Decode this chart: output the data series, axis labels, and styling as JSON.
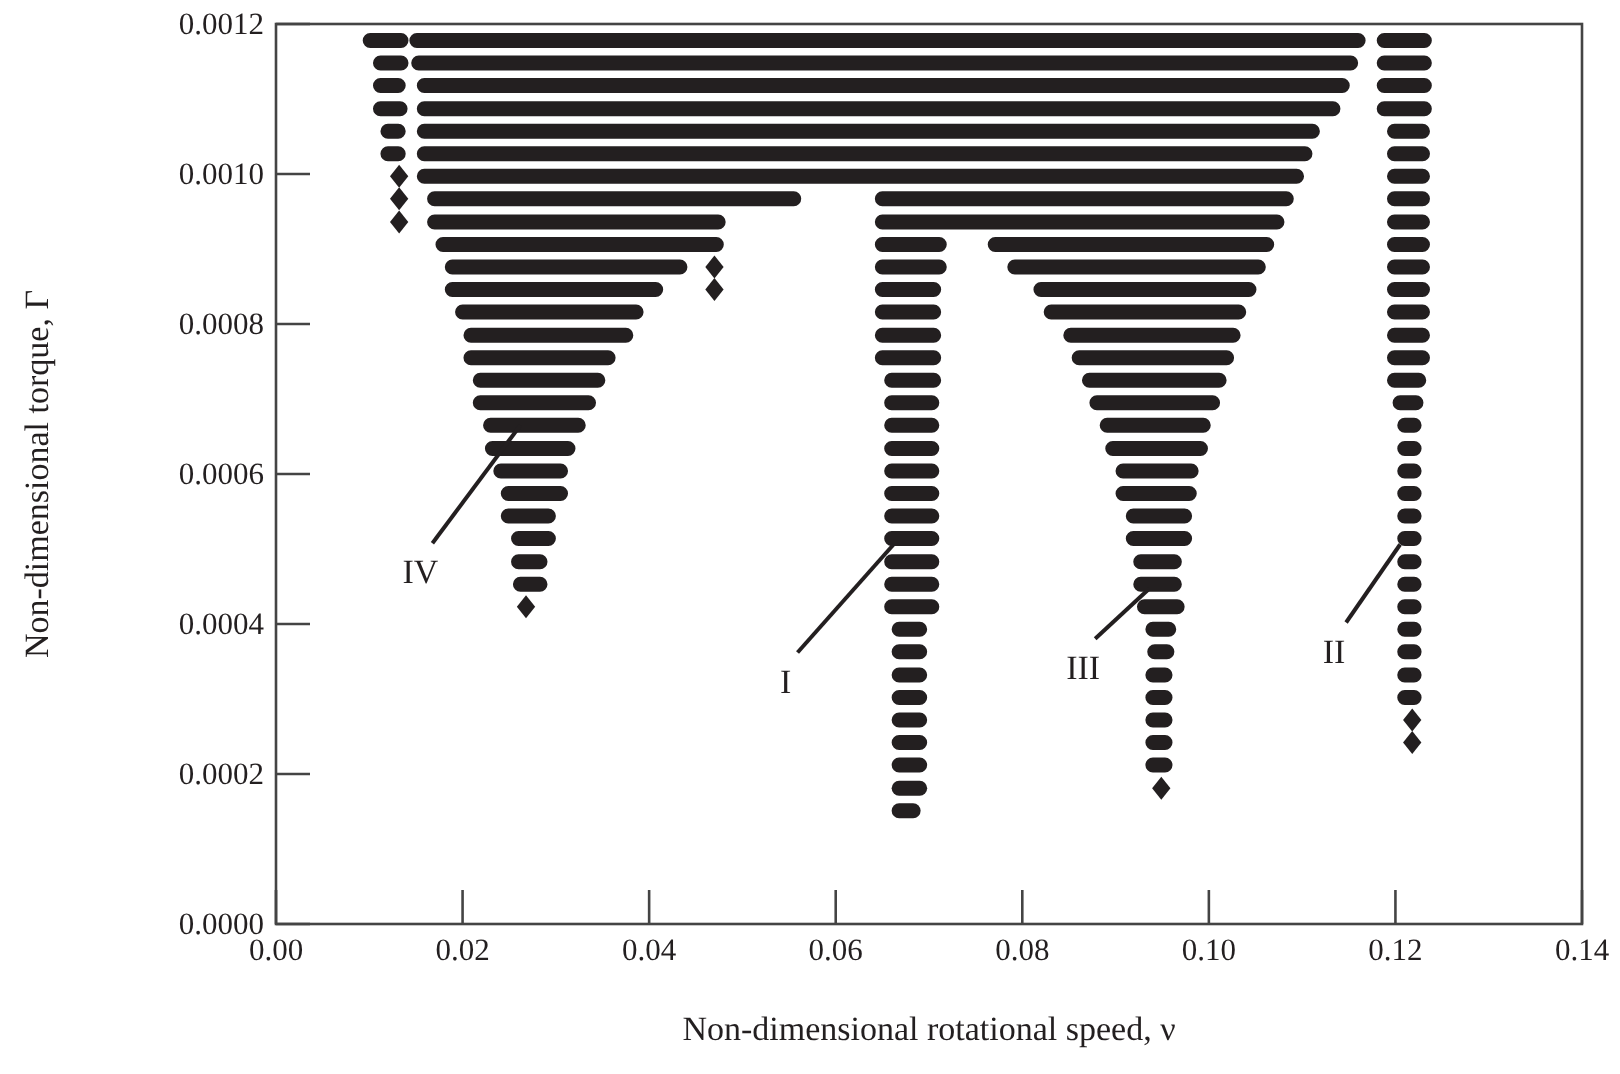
{
  "chart_data": {
    "type": "line",
    "xlabel": "Non-dimensional rotational speed, ν",
    "ylabel": "Non-dimensional torque, Γ",
    "xlim": [
      0,
      0.14
    ],
    "ylim": [
      0,
      0.0012
    ],
    "xticks": [
      {
        "value": 0,
        "label": "0.00"
      },
      {
        "value": 0.02,
        "label": "0.02"
      },
      {
        "value": 0.04,
        "label": "0.04"
      },
      {
        "value": 0.06,
        "label": "0.06"
      },
      {
        "value": 0.08,
        "label": "0.08"
      },
      {
        "value": 0.1,
        "label": "0.10"
      },
      {
        "value": 0.12,
        "label": "0.12"
      },
      {
        "value": 0.14,
        "label": "0.14"
      }
    ],
    "yticks": [
      {
        "value": 0,
        "label": "0.0000"
      },
      {
        "value": 0.0002,
        "label": "0.0002"
      },
      {
        "value": 0.0004,
        "label": "0.0004"
      },
      {
        "value": 0.0006,
        "label": "0.0006"
      },
      {
        "value": 0.0008,
        "label": "0.0008"
      },
      {
        "value": 0.001,
        "label": "0.0010"
      },
      {
        "value": 0.0012,
        "label": "0.0012"
      }
    ],
    "line_style": "solid",
    "annotations": [
      {
        "text": "IV",
        "x": 0.0262,
        "y": 0.000665
      },
      {
        "text": "I",
        "x": 0.0662,
        "y": 0.000506
      },
      {
        "text": "III",
        "x": 0.0936,
        "y": 0.000447
      },
      {
        "text": "II",
        "x": 0.1205,
        "y": 0.000506
      }
    ],
    "series": [
      {
        "color": "#231f20",
        "x": [
          0.0101,
          0.0134,
          null,
          0.0151,
          0.116,
          null,
          0.1188,
          0.1231
        ],
        "values": [
          0.001178,
          0.001178,
          null,
          0.001178,
          0.001178,
          null,
          0.001178,
          0.001178
        ]
      },
      {
        "color": "#231f20",
        "x": [
          0.0112,
          0.0134,
          null,
          0.0153,
          0.1152,
          null,
          0.1188,
          0.1231
        ],
        "values": [
          0.001148,
          0.001148,
          null,
          0.001148,
          0.001148,
          null,
          0.001148,
          0.001148
        ]
      },
      {
        "color": "#231f20",
        "x": [
          0.0112,
          0.0131,
          null,
          0.0159,
          0.1143,
          null,
          0.1188,
          0.1231
        ],
        "values": [
          0.001118,
          0.001118,
          null,
          0.001118,
          0.001118,
          null,
          0.001118,
          0.001118
        ]
      },
      {
        "color": "#231f20",
        "x": [
          0.0112,
          0.0133,
          null,
          0.0159,
          0.1133,
          null,
          0.1188,
          0.1231
        ],
        "values": [
          0.001087,
          0.001087,
          null,
          0.001087,
          0.001087,
          null,
          0.001087,
          0.001087
        ]
      },
      {
        "color": "#231f20",
        "x": [
          0.012,
          0.0131,
          null,
          0.0159,
          0.1111,
          null,
          0.1199,
          0.1229
        ],
        "values": [
          0.001057,
          0.001057,
          null,
          0.001057,
          0.001057,
          null,
          0.001057,
          0.001057
        ]
      },
      {
        "color": "#231f20",
        "x": [
          0.012,
          0.0131,
          null,
          0.0159,
          0.1103,
          null,
          0.1199,
          0.1229
        ],
        "values": [
          0.001027,
          0.001027,
          null,
          0.001027,
          0.001027,
          null,
          0.001027,
          0.001027
        ]
      },
      {
        "color": "#231f20",
        "x": [
          0.0159,
          0.1094,
          null,
          0.1199,
          0.1229
        ],
        "values": [
          0.000997,
          0.000997,
          null,
          0.000997,
          0.000997
        ]
      },
      {
        "color": "#231f20",
        "x": [
          0.017,
          0.0555,
          null,
          0.065,
          0.1083,
          null,
          0.1199,
          0.1229
        ],
        "values": [
          0.000967,
          0.000967,
          null,
          0.000967,
          0.000967,
          null,
          0.000967,
          0.000967
        ]
      },
      {
        "color": "#231f20",
        "x": [
          0.017,
          0.0474,
          null,
          0.065,
          0.1073,
          null,
          0.1199,
          0.1229
        ],
        "values": [
          0.000936,
          0.000936,
          null,
          0.000936,
          0.000936,
          null,
          0.000936,
          0.000936
        ]
      },
      {
        "color": "#231f20",
        "x": [
          0.0179,
          0.0472,
          null,
          0.065,
          0.0711,
          null,
          0.0771,
          0.1062,
          null,
          0.1199,
          0.1229
        ],
        "values": [
          0.000906,
          0.000906,
          null,
          0.000906,
          0.000906,
          null,
          0.000906,
          0.000906,
          null,
          0.000906,
          0.000906
        ]
      },
      {
        "color": "#231f20",
        "x": [
          0.0189,
          0.0433,
          null,
          0.065,
          0.0711,
          null,
          0.0792,
          0.1053,
          null,
          0.1199,
          0.1229
        ],
        "values": [
          0.000876,
          0.000876,
          null,
          0.000876,
          0.000876,
          null,
          0.000876,
          0.000876,
          null,
          0.000876,
          0.000876
        ]
      },
      {
        "color": "#231f20",
        "x": [
          0.0189,
          0.0407,
          null,
          0.065,
          0.0705,
          null,
          0.082,
          0.1043,
          null,
          0.1199,
          0.1229
        ],
        "values": [
          0.000846,
          0.000846,
          null,
          0.000846,
          0.000846,
          null,
          0.000846,
          0.000846,
          null,
          0.000846,
          0.000846
        ]
      },
      {
        "color": "#231f20",
        "x": [
          0.02,
          0.0386,
          null,
          0.065,
          0.0705,
          null,
          0.0831,
          0.1032,
          null,
          0.1199,
          0.1229
        ],
        "values": [
          0.000816,
          0.000816,
          null,
          0.000816,
          0.000816,
          null,
          0.000816,
          0.000816,
          null,
          0.000816,
          0.000816
        ]
      },
      {
        "color": "#231f20",
        "x": [
          0.0209,
          0.0375,
          null,
          0.065,
          0.0705,
          null,
          0.0852,
          0.1026,
          null,
          0.1199,
          0.1229
        ],
        "values": [
          0.000785,
          0.000785,
          null,
          0.000785,
          0.000785,
          null,
          0.000785,
          0.000785,
          null,
          0.000785,
          0.000785
        ]
      },
      {
        "color": "#231f20",
        "x": [
          0.0209,
          0.0356,
          null,
          0.065,
          0.0705,
          null,
          0.0861,
          0.1019,
          null,
          0.1199,
          0.1229
        ],
        "values": [
          0.000755,
          0.000755,
          null,
          0.000755,
          0.000755,
          null,
          0.000755,
          0.000755,
          null,
          0.000755,
          0.000755
        ]
      },
      {
        "color": "#231f20",
        "x": [
          0.0219,
          0.0345,
          null,
          0.066,
          0.0705,
          null,
          0.0872,
          0.1011,
          null,
          0.1199,
          0.1225
        ],
        "values": [
          0.000725,
          0.000725,
          null,
          0.000725,
          0.000725,
          null,
          0.000725,
          0.000725,
          null,
          0.000725,
          0.000725
        ]
      },
      {
        "color": "#231f20",
        "x": [
          0.0219,
          0.0335,
          null,
          0.066,
          0.0703,
          null,
          0.088,
          0.1004,
          null,
          0.1205,
          0.1222
        ],
        "values": [
          0.000695,
          0.000695,
          null,
          0.000695,
          0.000695,
          null,
          0.000695,
          0.000695,
          null,
          0.000695,
          0.000695
        ]
      },
      {
        "color": "#231f20",
        "x": [
          0.023,
          0.0324,
          null,
          0.066,
          0.0703,
          null,
          0.0891,
          0.0994,
          null,
          0.121,
          0.122
        ],
        "values": [
          0.000665,
          0.000665,
          null,
          0.000665,
          0.000665,
          null,
          0.000665,
          0.000665,
          null,
          0.000665,
          0.000665
        ]
      },
      {
        "color": "#231f20",
        "x": [
          0.0232,
          0.0313,
          null,
          0.066,
          0.0703,
          null,
          0.0897,
          0.0991,
          null,
          0.121,
          0.122
        ],
        "values": [
          0.000634,
          0.000634,
          null,
          0.000634,
          0.000634,
          null,
          0.000634,
          0.000634,
          null,
          0.000634,
          0.000634
        ]
      },
      {
        "color": "#231f20",
        "x": [
          0.0241,
          0.0305,
          null,
          0.066,
          0.0703,
          null,
          0.0908,
          0.0981,
          null,
          0.121,
          0.122
        ],
        "values": [
          0.000604,
          0.000604,
          null,
          0.000604,
          0.000604,
          null,
          0.000604,
          0.000604,
          null,
          0.000604,
          0.000604
        ]
      },
      {
        "color": "#231f20",
        "x": [
          0.0249,
          0.0305,
          null,
          0.066,
          0.0703,
          null,
          0.0908,
          0.0979,
          null,
          0.121,
          0.122
        ],
        "values": [
          0.000574,
          0.000574,
          null,
          0.000574,
          0.000574,
          null,
          0.000574,
          0.000574,
          null,
          0.000574,
          0.000574
        ]
      },
      {
        "color": "#231f20",
        "x": [
          0.0249,
          0.0292,
          null,
          0.066,
          0.0703,
          null,
          0.0919,
          0.0974,
          null,
          0.121,
          0.122
        ],
        "values": [
          0.000544,
          0.000544,
          null,
          0.000544,
          0.000544,
          null,
          0.000544,
          0.000544,
          null,
          0.000544,
          0.000544
        ]
      },
      {
        "color": "#231f20",
        "x": [
          0.026,
          0.0292,
          null,
          0.066,
          0.0703,
          null,
          0.0919,
          0.0974,
          null,
          0.121,
          0.122
        ],
        "values": [
          0.000514,
          0.000514,
          null,
          0.000514,
          0.000514,
          null,
          0.000514,
          0.000514,
          null,
          0.000514,
          0.000514
        ]
      },
      {
        "color": "#231f20",
        "x": [
          0.026,
          0.0283,
          null,
          0.066,
          0.0703,
          null,
          0.0927,
          0.0963,
          null,
          0.121,
          0.122
        ],
        "values": [
          0.000483,
          0.000483,
          null,
          0.000483,
          0.000483,
          null,
          0.000483,
          0.000483,
          null,
          0.000483,
          0.000483
        ]
      },
      {
        "color": "#231f20",
        "x": [
          0.0262,
          0.0283,
          null,
          0.066,
          0.0703,
          null,
          0.0927,
          0.0963,
          null,
          0.121,
          0.122
        ],
        "values": [
          0.000453,
          0.000453,
          null,
          0.000453,
          0.000453,
          null,
          0.000453,
          0.000453,
          null,
          0.000453,
          0.000453
        ]
      },
      {
        "color": "#231f20",
        "x": [
          0.066,
          0.0703,
          null,
          0.0931,
          0.0966,
          null,
          0.121,
          0.122
        ],
        "values": [
          0.000423,
          0.000423,
          null,
          0.000423,
          0.000423,
          null,
          0.000423,
          0.000423
        ]
      },
      {
        "color": "#231f20",
        "x": [
          0.0668,
          0.069,
          null,
          0.094,
          0.0957,
          null,
          0.121,
          0.122
        ],
        "values": [
          0.000393,
          0.000393,
          null,
          0.000393,
          0.000393,
          null,
          0.000393,
          0.000393
        ]
      },
      {
        "color": "#231f20",
        "x": [
          0.0668,
          0.069,
          null,
          0.0942,
          0.0955,
          null,
          0.121,
          0.122
        ],
        "values": [
          0.000363,
          0.000363,
          null,
          0.000363,
          0.000363,
          null,
          0.000363,
          0.000363
        ]
      },
      {
        "color": "#231f20",
        "x": [
          0.0668,
          0.069,
          null,
          0.094,
          0.0953,
          null,
          0.121,
          0.122
        ],
        "values": [
          0.000332,
          0.000332,
          null,
          0.000332,
          0.000332,
          null,
          0.000332,
          0.000332
        ]
      },
      {
        "color": "#231f20",
        "x": [
          0.0668,
          0.069,
          null,
          0.094,
          0.0953,
          null,
          0.121,
          0.122
        ],
        "values": [
          0.000302,
          0.000302,
          null,
          0.000302,
          0.000302,
          null,
          0.000302,
          0.000302
        ]
      },
      {
        "color": "#231f20",
        "x": [
          0.0668,
          0.069,
          null,
          0.094,
          0.0953
        ],
        "values": [
          0.000272,
          0.000272,
          null,
          0.000272,
          0.000272
        ]
      },
      {
        "color": "#231f20",
        "x": [
          0.0668,
          0.069,
          null,
          0.094,
          0.0953
        ],
        "values": [
          0.000242,
          0.000242,
          null,
          0.000242,
          0.000242
        ]
      },
      {
        "color": "#231f20",
        "x": [
          0.0668,
          0.069,
          null,
          0.094,
          0.0953
        ],
        "values": [
          0.000212,
          0.000212,
          null,
          0.000212,
          0.000212
        ]
      },
      {
        "color": "#231f20",
        "x": [
          0.0668,
          0.069
        ],
        "values": [
          0.000181,
          0.000181
        ]
      },
      {
        "type": "scatter",
        "marker": "diamond",
        "color": "#231f20",
        "x": [
          0.0132,
          0.0132,
          0.0132,
          0.047,
          0.047,
          0.0268,
          0.1218,
          0.1218,
          0.0949
        ],
        "values": [
          0.000997,
          0.000967,
          0.000936,
          0.000876,
          0.000846,
          0.000423,
          0.000272,
          0.000242,
          0.000181
        ]
      },
      {
        "color": "#231f20",
        "x": [
          0.0668,
          0.0683
        ],
        "values": [
          0.000151,
          0.000151
        ]
      }
    ]
  }
}
